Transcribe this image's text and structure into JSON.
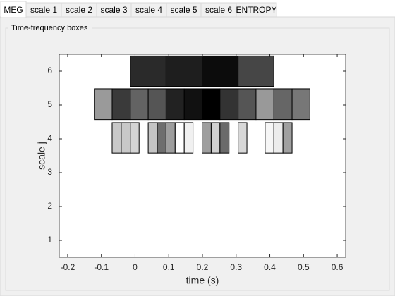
{
  "tabs": [
    "MEG",
    "scale 1",
    "scale 2",
    "scale 3",
    "scale 4",
    "scale 5",
    "scale 6",
    "ENTROPY"
  ],
  "active_tab": 0,
  "group_title": "Time-frequency boxes",
  "chart_data": {
    "type": "boxes",
    "xlabel": "time (s)",
    "ylabel": "scale j",
    "xlim": [
      -0.225,
      0.625
    ],
    "ylim": [
      0.5,
      6.5
    ],
    "xticks": [
      -0.2,
      -0.1,
      0,
      0.1,
      0.2,
      0.3,
      0.4,
      0.5,
      0.6
    ],
    "yticks": [
      1,
      2,
      3,
      4,
      5,
      6
    ],
    "rows": [
      {
        "j": [
          5.55,
          6.45
        ],
        "boxes": [
          {
            "t": [
              -0.014,
              0.092
            ],
            "color": "#2a2a2a"
          },
          {
            "t": [
              0.092,
              0.199
            ],
            "color": "#1e1e1e"
          },
          {
            "t": [
              0.199,
              0.306
            ],
            "color": "#0c0c0c"
          },
          {
            "t": [
              0.306,
              0.412
            ],
            "color": "#464646"
          }
        ]
      },
      {
        "j": [
          4.57,
          5.48
        ],
        "boxes": [
          {
            "t": [
              -0.121,
              -0.068
            ],
            "color": "#9a9a9a"
          },
          {
            "t": [
              -0.068,
              -0.014
            ],
            "color": "#3a3a3a"
          },
          {
            "t": [
              -0.014,
              0.039
            ],
            "color": "#636363"
          },
          {
            "t": [
              0.039,
              0.092
            ],
            "color": "#555555"
          },
          {
            "t": [
              0.092,
              0.146
            ],
            "color": "#222222"
          },
          {
            "t": [
              0.146,
              0.199
            ],
            "color": "#111111"
          },
          {
            "t": [
              0.199,
              0.252
            ],
            "color": "#000000"
          },
          {
            "t": [
              0.252,
              0.306
            ],
            "color": "#333333"
          },
          {
            "t": [
              0.306,
              0.359
            ],
            "color": "#555555"
          },
          {
            "t": [
              0.359,
              0.412
            ],
            "color": "#999999"
          },
          {
            "t": [
              0.412,
              0.466
            ],
            "color": "#666666"
          },
          {
            "t": [
              0.466,
              0.519
            ],
            "color": "#777777"
          }
        ]
      },
      {
        "j": [
          3.58,
          4.48
        ],
        "boxes": [
          {
            "t": [
              -0.068,
              -0.041
            ],
            "color": "#c8c8c8"
          },
          {
            "t": [
              -0.041,
              -0.014
            ],
            "color": "#c8c8c8"
          },
          {
            "t": [
              -0.014,
              0.012
            ],
            "color": "#d4d4d4"
          },
          {
            "t": [
              0.039,
              0.066
            ],
            "color": "#c4c4c4"
          },
          {
            "t": [
              0.066,
              0.092
            ],
            "color": "#6e6e6e"
          },
          {
            "t": [
              0.092,
              0.119
            ],
            "color": "#9e9e9e"
          },
          {
            "t": [
              0.119,
              0.146
            ],
            "color": "#ffffff"
          },
          {
            "t": [
              0.146,
              0.172
            ],
            "color": "#f0f0f0"
          },
          {
            "t": [
              0.199,
              0.226
            ],
            "color": "#9e9e9e"
          },
          {
            "t": [
              0.226,
              0.252
            ],
            "color": "#d0d0d0"
          },
          {
            "t": [
              0.252,
              0.279
            ],
            "color": "#6a6a6a"
          },
          {
            "t": [
              0.306,
              0.332
            ],
            "color": "#d8d8d8"
          },
          {
            "t": [
              0.386,
              0.412
            ],
            "color": "#f6f6f6"
          },
          {
            "t": [
              0.412,
              0.439
            ],
            "color": "#ececec"
          },
          {
            "t": [
              0.439,
              0.466
            ],
            "color": "#a0a0a0"
          }
        ]
      }
    ]
  }
}
